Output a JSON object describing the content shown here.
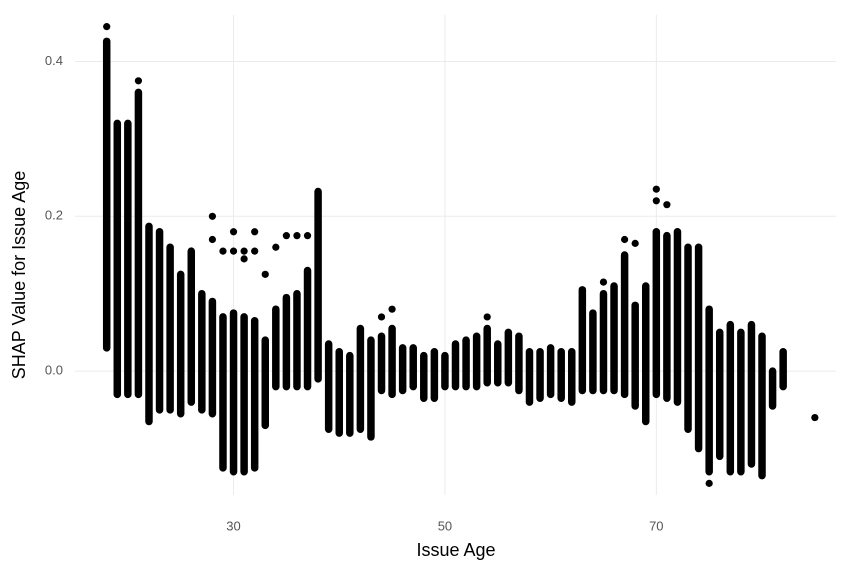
{
  "chart_data": {
    "type": "range",
    "x_label": "Issue Age",
    "y_label": "SHAP Value for Issue Age",
    "color": "#000000",
    "grid": true,
    "xlim": [
      15,
      87
    ],
    "ylim": [
      -0.16,
      0.46
    ],
    "xticks": [
      30,
      50,
      70
    ],
    "yticks": [
      {
        "value": 0,
        "label": "0.0"
      },
      0.2,
      0.4
    ],
    "x": [
      18,
      19,
      20,
      21,
      22,
      23,
      24,
      25,
      26,
      27,
      28,
      29,
      30,
      31,
      32,
      33,
      34,
      35,
      36,
      37,
      38,
      39,
      40,
      41,
      42,
      43,
      44,
      45,
      46,
      47,
      48,
      49,
      50,
      51,
      52,
      53,
      54,
      55,
      56,
      57,
      58,
      59,
      60,
      61,
      62,
      63,
      64,
      65,
      66,
      67,
      68,
      69,
      70,
      71,
      72,
      73,
      74,
      75,
      76,
      77,
      78,
      79,
      80,
      81,
      82
    ],
    "low": [
      0.03,
      -0.03,
      -0.03,
      -0.03,
      -0.065,
      -0.05,
      -0.05,
      -0.055,
      -0.04,
      -0.05,
      -0.055,
      -0.125,
      -0.13,
      -0.13,
      -0.125,
      -0.07,
      -0.02,
      -0.02,
      -0.02,
      -0.02,
      -0.01,
      -0.075,
      -0.08,
      -0.08,
      -0.075,
      -0.085,
      -0.025,
      -0.03,
      -0.025,
      -0.02,
      -0.035,
      -0.035,
      -0.02,
      -0.02,
      -0.02,
      -0.02,
      -0.015,
      -0.015,
      -0.015,
      -0.025,
      -0.04,
      -0.035,
      -0.03,
      -0.035,
      -0.04,
      -0.025,
      -0.025,
      -0.025,
      -0.025,
      -0.03,
      -0.045,
      -0.065,
      -0.03,
      -0.035,
      -0.04,
      -0.075,
      -0.1,
      -0.13,
      -0.11,
      -0.13,
      -0.13,
      -0.12,
      -0.135,
      -0.045,
      -0.02
    ],
    "high": [
      0.426,
      0.32,
      0.32,
      0.36,
      0.187,
      0.18,
      0.16,
      0.125,
      0.155,
      0.1,
      0.09,
      0.07,
      0.075,
      0.07,
      0.065,
      0.04,
      0.08,
      0.095,
      0.1,
      0.13,
      0.232,
      0.035,
      0.025,
      0.02,
      0.055,
      0.04,
      0.045,
      0.055,
      0.03,
      0.03,
      0.02,
      0.025,
      0.02,
      0.035,
      0.04,
      0.045,
      0.055,
      0.035,
      0.05,
      0.045,
      0.025,
      0.025,
      0.03,
      0.025,
      0.025,
      0.105,
      0.075,
      0.1,
      0.11,
      0.15,
      0.085,
      0.11,
      0.18,
      0.175,
      0.18,
      0.16,
      0.16,
      0.08,
      0.05,
      0.06,
      0.05,
      0.06,
      0.045,
      0.0,
      0.025
    ],
    "points": {
      "x": [
        18,
        21,
        28,
        28,
        29,
        30,
        30,
        31,
        31,
        32,
        32,
        33,
        34,
        35,
        36,
        37,
        44,
        45,
        54,
        65,
        67,
        68,
        70,
        70,
        71,
        75,
        85
      ],
      "y": [
        0.445,
        0.375,
        0.2,
        0.17,
        0.155,
        0.18,
        0.155,
        0.155,
        0.145,
        0.18,
        0.155,
        0.125,
        0.16,
        0.175,
        0.175,
        0.175,
        0.07,
        0.08,
        0.07,
        0.115,
        0.17,
        0.165,
        0.235,
        0.22,
        0.215,
        -0.145,
        -0.06
      ]
    }
  }
}
